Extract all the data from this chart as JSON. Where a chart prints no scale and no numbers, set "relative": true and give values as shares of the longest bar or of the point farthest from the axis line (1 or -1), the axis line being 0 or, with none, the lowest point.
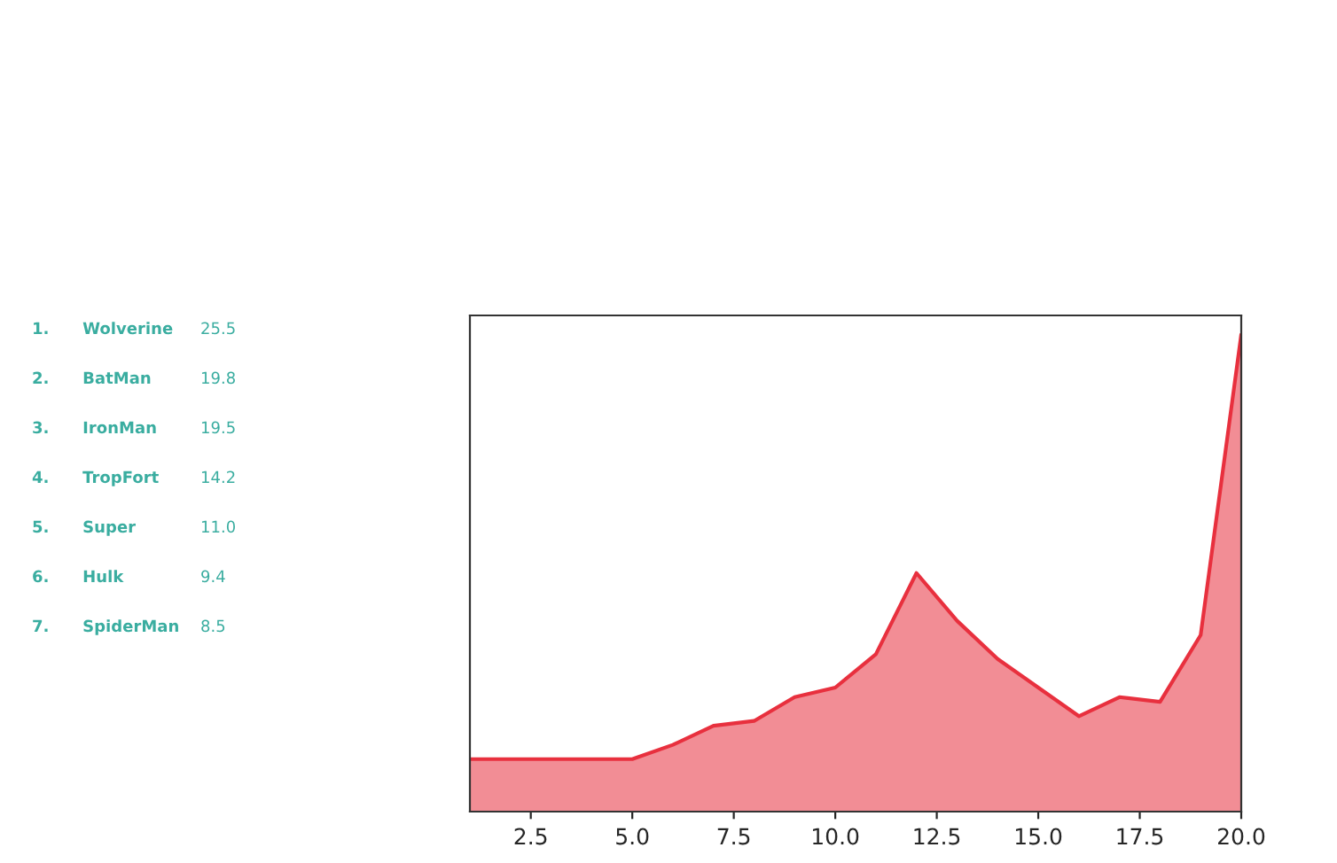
{
  "chart_data": [
    {
      "type": "other",
      "color": "#3aada0",
      "annotations": [
        "1.      Wolverine",
        "25.5",
        "2.      BatMan",
        "19.8",
        "3.      IronMan",
        "19.5",
        "4.      TropFort",
        "14.2",
        "5.      Super",
        "11.0",
        "6.      Hulk",
        "9.4",
        "7.      SpiderMan",
        "8.5"
      ]
    },
    {
      "type": "area",
      "relative": true,
      "tick_labels": "x",
      "grid": false,
      "x": [
        1,
        2,
        3,
        4,
        5,
        6,
        7,
        8,
        9,
        10,
        11,
        12,
        13,
        14,
        15,
        16,
        17,
        18,
        19,
        20
      ],
      "xlim": [
        1,
        20
      ],
      "xticks": [
        {
          "value": 2.5,
          "label": "2.5"
        },
        {
          "value": 5,
          "label": "5.0"
        },
        {
          "value": 7.5,
          "label": "7.5"
        },
        {
          "value": 10,
          "label": "10.0"
        },
        {
          "value": 12.5,
          "label": "12.5"
        },
        {
          "value": 15,
          "label": "15.0"
        },
        {
          "value": 17.5,
          "label": "17.5"
        },
        {
          "value": 20,
          "label": "20.0"
        }
      ],
      "series": [
        {
          "color": "#e8303e",
          "values": [
            0.11,
            0.11,
            0.11,
            0.11,
            0.11,
            0.14,
            0.18,
            0.19,
            0.24,
            0.26,
            0.33,
            0.5,
            0.4,
            0.32,
            0.26,
            0.2,
            0.24,
            0.23,
            0.37,
            1.0
          ]
        }
      ]
    }
  ]
}
